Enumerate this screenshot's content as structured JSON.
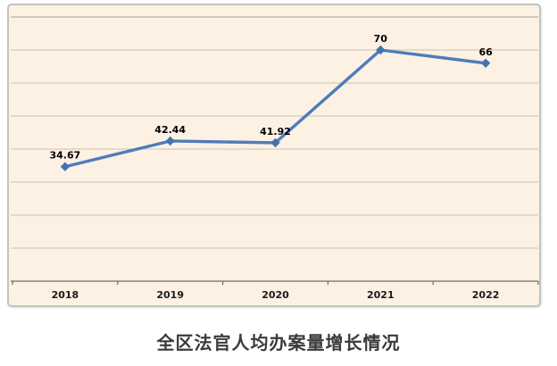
{
  "chart_data": {
    "type": "line",
    "title": "全区法官人均办案量增长情况",
    "categories": [
      "2018",
      "2019",
      "2020",
      "2021",
      "2022"
    ],
    "values": [
      34.67,
      42.44,
      41.92,
      70,
      66
    ],
    "data_labels": [
      "34.67",
      "42.44",
      "41.92",
      "70",
      "66"
    ],
    "xlabel": "",
    "ylabel": "",
    "ylim": [
      0,
      80
    ],
    "y_major_unit": 10,
    "grid": true,
    "legend": "none",
    "y_tick_labels_visible": false
  },
  "style": {
    "page_background": "#FFFFFF",
    "chart_background": "#FCF1E2",
    "line_color": "#4E7CBA",
    "marker_color": "#4573B0",
    "gridline_color": "#CDC4B5",
    "top_gridline_color": "#A99F8F",
    "axis_color": "#6B6B6B",
    "tick_label_color": "#1A1A1A",
    "data_label_color": "#000000",
    "title_color": "#3A3A3A",
    "frame_border_color": "#C2C2C2"
  }
}
